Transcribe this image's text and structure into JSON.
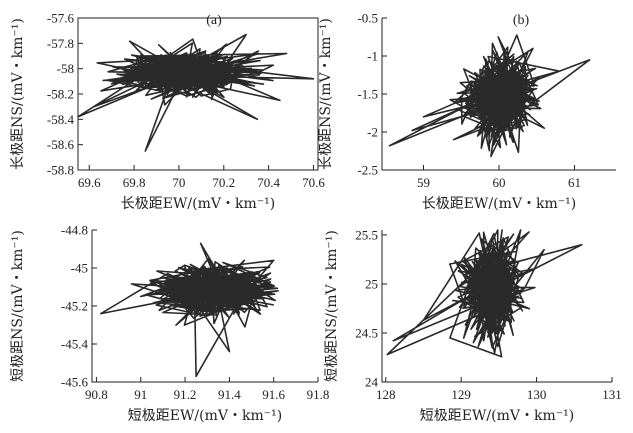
{
  "figure": {
    "panels": [
      "a",
      "b",
      "c",
      "d"
    ]
  },
  "chart_data": [
    {
      "id": "a",
      "type": "line",
      "panel_label": "(a)",
      "xlabel": "长极距EW/(mV・km⁻¹)",
      "ylabel": "长极距NS/(mV・km⁻¹)",
      "xticks": [
        "69.6",
        "69.8",
        "70",
        "70.2",
        "70.4",
        "70.6"
      ],
      "yticks": [
        "-57.6",
        "-57.8",
        "-58",
        "-58.2",
        "-58.4",
        "-58.6",
        "-58.8"
      ],
      "xlim": [
        69.55,
        70.62
      ],
      "ylim": [
        -58.8,
        -57.6
      ],
      "series": [
        {
          "center": [
            70.03,
            -58.03
          ],
          "spread": [
            0.14,
            0.085
          ],
          "n": 520,
          "seed": 11,
          "excursions": [
            [
              69.55,
              -58.38
            ],
            [
              70.48,
              -57.88
            ],
            [
              69.85,
              -58.65
            ],
            [
              70.6,
              -58.08
            ],
            [
              70.3,
              -57.73
            ],
            [
              70.45,
              -58.25
            ],
            [
              69.7,
              -58.12
            ],
            [
              69.62,
              -58.3
            ],
            [
              70.35,
              -58.4
            ]
          ]
        }
      ]
    },
    {
      "id": "b",
      "type": "line",
      "panel_label": "(b)",
      "xlabel": "长极距EW/(mV・km⁻¹)",
      "ylabel": "长极距NS/(mV・km⁻¹)",
      "xticks": [
        "59",
        "60",
        "61"
      ],
      "yticks": [
        "-0.5",
        "-1",
        "-1.5",
        "-2",
        "-2.5"
      ],
      "xlim": [
        58.45,
        61.55
      ],
      "ylim": [
        -2.5,
        -0.5
      ],
      "series": [
        {
          "center": [
            60.0,
            -1.55
          ],
          "spread": [
            0.22,
            0.26
          ],
          "n": 520,
          "seed": 23,
          "excursions": [
            [
              58.55,
              -2.18
            ],
            [
              61.2,
              -1.05
            ],
            [
              59.0,
              -1.8
            ],
            [
              60.8,
              -1.2
            ],
            [
              59.4,
              -2.1
            ],
            [
              58.85,
              -1.98
            ],
            [
              60.45,
              -0.9
            ],
            [
              60.6,
              -1.95
            ]
          ]
        }
      ]
    },
    {
      "id": "c",
      "type": "line",
      "panel_label": "",
      "xlabel": "短极距EW/(mV・km⁻¹)",
      "ylabel": "短极距NS/(mV・km⁻¹)",
      "xticks": [
        "90.8",
        "91",
        "91.2",
        "91.4",
        "91.6",
        "91.8"
      ],
      "yticks": [
        "-44.8",
        "-45",
        "-45.2",
        "-45.4",
        "-45.6"
      ],
      "xlim": [
        90.78,
        91.8
      ],
      "ylim": [
        -45.6,
        -44.8
      ],
      "series": [
        {
          "center": [
            91.33,
            -45.11
          ],
          "spread": [
            0.12,
            0.065
          ],
          "n": 520,
          "seed": 37,
          "excursions": [
            [
              90.82,
              -45.24
            ],
            [
              91.6,
              -44.96
            ],
            [
              91.25,
              -45.57
            ],
            [
              91.47,
              -45.31
            ],
            [
              91.27,
              -44.87
            ],
            [
              91.0,
              -45.15
            ],
            [
              91.62,
              -45.12
            ],
            [
              91.4,
              -45.44
            ]
          ]
        }
      ]
    },
    {
      "id": "d",
      "type": "line",
      "panel_label": "",
      "xlabel": "短极距EW/(mV・km⁻¹)",
      "ylabel": "短极距NS/(mV・km⁻¹)",
      "xticks": [
        "128",
        "129",
        "130",
        "131"
      ],
      "yticks": [
        "25.5",
        "25",
        "24.5",
        "24"
      ],
      "xlim": [
        127.95,
        131.0
      ],
      "ylim": [
        24.0,
        25.55
      ],
      "series": [
        {
          "center": [
            129.42,
            24.95
          ],
          "spread": [
            0.2,
            0.23
          ],
          "n": 520,
          "seed": 53,
          "excursions": [
            [
              128.02,
              24.28
            ],
            [
              130.6,
              25.4
            ],
            [
              128.5,
              24.63
            ],
            [
              130.1,
              25.35
            ],
            [
              128.85,
              24.45
            ],
            [
              129.9,
              25.53
            ],
            [
              128.1,
              24.42
            ],
            [
              129.0,
              25.2
            ]
          ]
        }
      ]
    }
  ]
}
